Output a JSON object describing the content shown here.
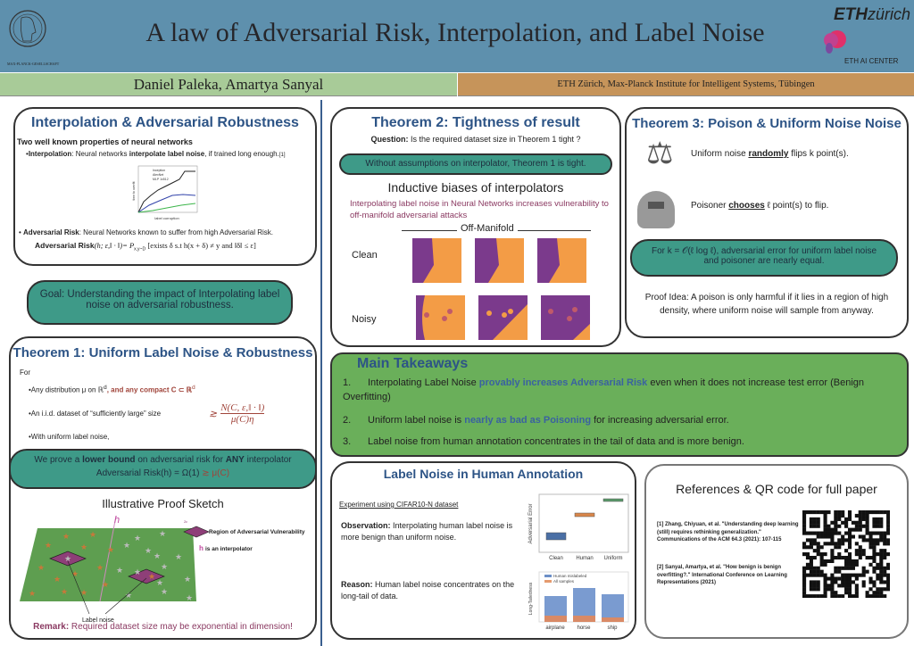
{
  "header": {
    "title": "A law of Adversarial Risk, Interpolation, and Label Noise",
    "left_logo_text": "MAX-PLANCK-GESELLSCHAFT",
    "right_logo_eth": "ETH",
    "right_logo_zurich": "zürich",
    "right_logo_center": "ETH AI CENTER",
    "authors": "Daniel Paleka, Amartya Sanyal",
    "affiliation": "ETH Zürich, Max-Planck Institute for Intelligent Systems, Tübingen"
  },
  "interp": {
    "title": "Interpolation & Adversarial Robustness",
    "intro": "Two well known properties of neural networks",
    "b1_label": "Interpolation",
    "b1_a": ": Neural networks ",
    "b1_bold": "interpolate label noise",
    "b1_b": ", if trained long enough.",
    "b1_ref": "[1]",
    "legend": [
      "Inception",
      "AlexNet",
      "MLP 1x512"
    ],
    "xlabel": "label corruption",
    "ylabel": "time to overfit",
    "b2_label": "Adversarial Risk",
    "b2_text": ": Neural Networks known to suffer from high Adversarial Risk.",
    "formula_label": "Adversarial Risk",
    "formula": "(h; ε,‖ · ‖)= P",
    "formula_sub": "x,y~D",
    "formula_rest": "[exists δ s.t h(x + δ) ≠ y  and  ‖δ‖ ≤ ε]"
  },
  "goal": "Goal: Understanding the impact of Interpolating label noise on adversarial robustness.",
  "thm1": {
    "title": "Theorem 1: Uniform Label Noise  & Robustness",
    "for": "For",
    "b1": "•Any distribution μ on ℝ",
    "b1_sup": "d",
    "b1_red": ", and any compact C ⊂ ℝ",
    "b2": "•An i.i.d. dataset of “sufficiently large” size",
    "frac_num": "N(C, ε,‖ · ‖)",
    "frac_den": "μ(C)η",
    "approx": "≳",
    "b3": "•With uniform label noise,",
    "pill_a": "We prove a ",
    "pill_bold1": "lower bound",
    "pill_b": " on adversarial risk for ",
    "pill_bold2": "ANY",
    "pill_c": " interpolator",
    "pill_formula": "Adversarial Risk(h)  = Ω(1)",
    "pill_red": "≳ μ(C)",
    "sketch_title": "Illustrative Proof Sketch",
    "h_label": "h",
    "legend_region": "Region of Adversarial Vulnerability",
    "legend_interp": "is an interpolator",
    "eps": "2ε",
    "label_noise": "Label noise",
    "remark_label": "Remark:",
    "remark": " Required dataset size may be exponential in dimension!"
  },
  "thm2": {
    "title": "Theorem 2: Tightness of result",
    "q_label": "Question:",
    "q": " Is the required dataset size in Theorem 1 tight ?",
    "pill": "Without assumptions on interpolator, Theorem 1 is tight.",
    "sub": "Inductive biases of interpolators",
    "desc": "Interpolating label noise in Neural Networks increases vulnerability to off-manifold adversarial attacks",
    "axis": "Off-Manifold",
    "row1": "Clean",
    "row2": "Noisy"
  },
  "thm3": {
    "title": "Theorem 3: Poison & Uniform Noise Noise",
    "l1a": "Uniform noise ",
    "l1b": "randomly",
    "l1c": " flips k point(s).",
    "l2a": "Poisoner ",
    "l2b": "chooses",
    "l2c": " ℓ point(s) to flip.",
    "pill": "For k = 𝒪(ℓ log ℓ),  adversarial error for uniform label noise and poisoner are nearly equal.",
    "proof": "Proof Idea: A poison is only harmful if it lies in a region of high density, where uniform noise will sample from anyway."
  },
  "takeaways": {
    "title": "Main Takeaways",
    "items": [
      {
        "n": "1.",
        "a": "Interpolating Label Noise ",
        "hl": "provably increases Adversarial Risk",
        "b": "  even when it does not increase test error (Benign Overfitting)"
      },
      {
        "n": "2.",
        "a": "Uniform label noise is ",
        "hl": "nearly as bad as Poisoning",
        "b": " for increasing adversarial error."
      },
      {
        "n": "3.",
        "a": "Label noise from human annotation concentrates in the tail of data and is more benign.",
        "hl": "",
        "b": ""
      }
    ]
  },
  "human": {
    "title": "Label Noise in Human Annotation",
    "exp": "Experiment using CIFAR10-N dataset",
    "obs_label": "Observation:",
    "obs": " Interpolating human label noise is  more benign than uniform noise.",
    "reason_label": "Reason:",
    "reason": " Human label noise concentrates on the long-tail of data.",
    "box_ylabel": "Adversarial Error",
    "box_cats": [
      "Clean",
      "Human",
      "Uniform"
    ],
    "bar_ylabel": "Long-Tailedness",
    "bar_legend": [
      "Human mislabeled",
      "All samples"
    ],
    "bar_cats": [
      "airplane",
      "horse",
      "ship"
    ]
  },
  "refs": {
    "title": "References &  QR code for full paper",
    "r1": "[1] Zhang, Chiyuan, et al. \"Understanding deep learning (still) requires rethinking generalization.\" Communications of the ACM 64.3 (2021): 107-115",
    "r2": "[2] Sanyal, Amartya, et al. \"How benign is benign overfitting?.\" International Conference on Learning Representations (2021)"
  },
  "colors": {
    "header": "#5e90ad",
    "teal": "#3e9a88",
    "green": "#6aaf5a",
    "heading_blue": "#2d5486",
    "orange": "#f39c46",
    "purple": "#7b3a8c"
  }
}
